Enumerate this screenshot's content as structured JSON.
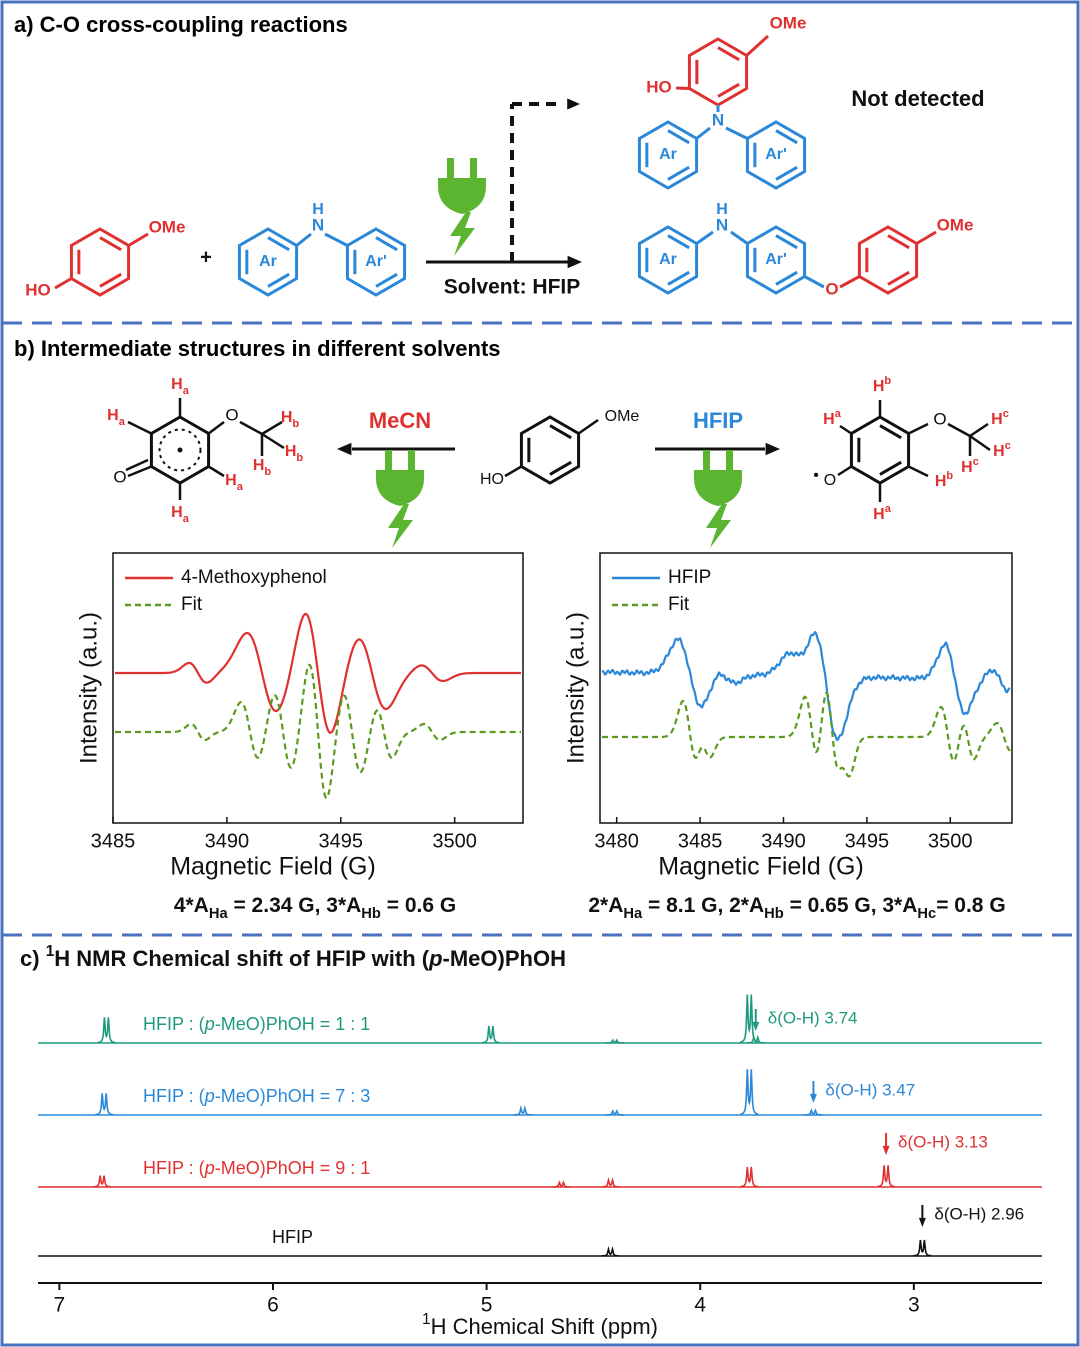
{
  "panel_a": {
    "title": "a) C-O cross-coupling reactions",
    "ome": "OMe",
    "ho": "HO",
    "plus": "+",
    "h": "H",
    "n": "N",
    "o": "O",
    "ar": "Ar",
    "ar2": "Ar'",
    "condition": "Solvent: HFIP",
    "not_detected": "Not detected"
  },
  "panel_b": {
    "title": "b) Intermediate structures in different solvents",
    "left_solvent": "MeCN",
    "right_solvent": "HFIP",
    "ome": "OMe",
    "ho": "HO",
    "o": "O",
    "h": "H",
    "a": "a",
    "b": "b",
    "c": "c",
    "radical": "•",
    "charts": [
      {
        "type": "line",
        "xlabel": "Magnetic Field (G)",
        "ylabel": "Intensity (a.u.)",
        "xlim": [
          3485,
          3503
        ],
        "xticks": [
          3485,
          3490,
          3495,
          3500
        ],
        "series": [
          {
            "name": "4-Methoxyphenol",
            "color": "#e03131"
          },
          {
            "name": "Fit",
            "color": "#5c9a1f",
            "dashed": true
          }
        ]
      },
      {
        "type": "line",
        "xlabel": "Magnetic Field (G)",
        "ylabel": "Intensity (a.u.)",
        "xlim": [
          3479,
          3503.7
        ],
        "xticks": [
          3480,
          3485,
          3490,
          3495,
          3500
        ],
        "series": [
          {
            "name": "HFIP",
            "color": "#2b88d8"
          },
          {
            "name": "Fit",
            "color": "#5c9a1f",
            "dashed": true
          }
        ]
      }
    ],
    "hyperfine": [
      [
        {
          "text": "4*A"
        },
        {
          "text": "Ha",
          "sub": true
        },
        {
          "text": " = 2.34 G, 3*A"
        },
        {
          "text": "Hb",
          "sub": true
        },
        {
          "text": " = 0.6 G"
        }
      ],
      [
        {
          "text": "2*A"
        },
        {
          "text": "Ha",
          "sub": true
        },
        {
          "text": " = 8.1 G, 2*A"
        },
        {
          "text": "Hb",
          "sub": true
        },
        {
          "text": " = 0.65 G, 3*A"
        },
        {
          "text": "Hc",
          "sub": true
        },
        {
          "text": "= 0.8 G"
        }
      ]
    ]
  },
  "panel_c": {
    "title": [
      {
        "text": "c) "
      },
      {
        "text": "1",
        "sup": true
      },
      {
        "text": "H NMR Chemical shift of HFIP with ("
      },
      {
        "text": "p",
        "italic": true
      },
      {
        "text": "-MeO)PhOH"
      }
    ],
    "chart_data": {
      "type": "nmr",
      "xlabel": [
        {
          "text": "1",
          "sup": true
        },
        {
          "text": "H Chemical Shift (ppm)"
        }
      ],
      "xlim": [
        7.1,
        2.4
      ],
      "xticks": [
        7,
        6,
        5,
        4,
        3
      ],
      "series": [
        {
          "name": [
            {
              "text": "HFIP : ("
            },
            {
              "text": "p",
              "italic": true
            },
            {
              "text": "-MeO)PhOH = 1 : 1"
            }
          ],
          "color": "#1f9a7d",
          "peaks": [
            {
              "ppm": 6.78,
              "height": 45
            },
            {
              "ppm": 4.98,
              "height": 30
            },
            {
              "ppm": 4.4,
              "height": 5
            },
            {
              "ppm": 3.77,
              "height": 85
            },
            {
              "ppm": 3.74,
              "height": 10
            }
          ],
          "annotation": {
            "label": "δ(O-H) 3.74",
            "ppm": 3.74
          }
        },
        {
          "name": [
            {
              "text": "HFIP : ("
            },
            {
              "text": "p",
              "italic": true
            },
            {
              "text": "-MeO)PhOH = 7 : 3"
            }
          ],
          "color": "#2b88d8",
          "peaks": [
            {
              "ppm": 6.79,
              "height": 38
            },
            {
              "ppm": 4.83,
              "height": 12
            },
            {
              "ppm": 4.4,
              "height": 7
            },
            {
              "ppm": 3.77,
              "height": 80
            },
            {
              "ppm": 3.47,
              "height": 8
            }
          ],
          "annotation": {
            "label": "δ(O-H) 3.47",
            "ppm": 3.47
          }
        },
        {
          "name": [
            {
              "text": "HFIP : ("
            },
            {
              "text": "p",
              "italic": true
            },
            {
              "text": "-MeO)PhOH = 9 : 1"
            }
          ],
          "color": "#e03131",
          "peaks": [
            {
              "ppm": 6.8,
              "height": 20
            },
            {
              "ppm": 4.65,
              "height": 8
            },
            {
              "ppm": 4.42,
              "height": 12
            },
            {
              "ppm": 3.77,
              "height": 35
            },
            {
              "ppm": 3.13,
              "height": 38
            }
          ],
          "annotation": {
            "label": "δ(O-H) 3.13",
            "ppm": 3.13
          }
        },
        {
          "name": [
            {
              "text": "HFIP"
            }
          ],
          "color": "#111111",
          "peaks": [
            {
              "ppm": 4.42,
              "height": 12
            },
            {
              "ppm": 2.96,
              "height": 28
            }
          ],
          "annotation": {
            "label": "δ(O-H) 2.96",
            "ppm": 2.96
          }
        }
      ]
    }
  }
}
